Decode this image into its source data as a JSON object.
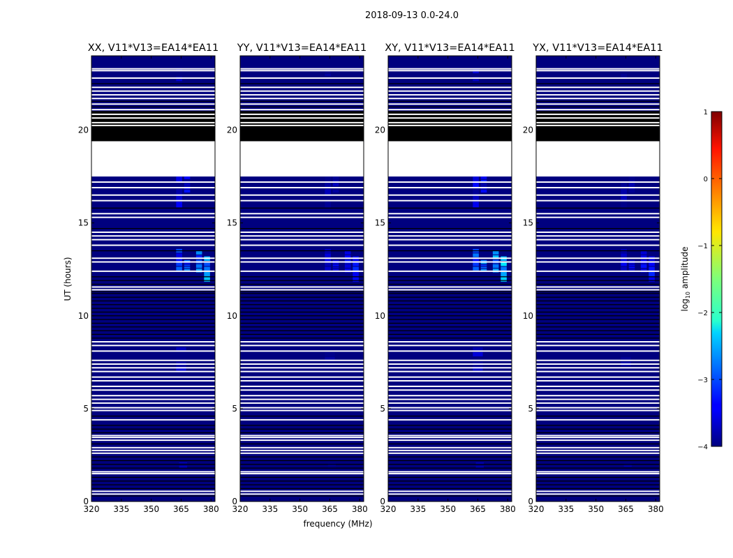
{
  "figure": {
    "suptitle": "2018-09-13 0.0-24.0",
    "xlabel": "frequency (MHz)",
    "ylabel": "UT (hours)"
  },
  "colorbar": {
    "label_prefix": "log",
    "label_sub": "10",
    "label_suffix": " amplitude",
    "range": [
      -4,
      1
    ],
    "ticks": [
      1,
      0,
      -1,
      -2,
      -3,
      -4
    ],
    "tick_labels": [
      "1",
      "0",
      "−1",
      "−2",
      "−3",
      "−4"
    ],
    "colormap": "jet"
  },
  "chart_data": {
    "type": "heatmap",
    "xlim": [
      320,
      382
    ],
    "ylim": [
      0,
      24
    ],
    "x_ticks": [
      320,
      335,
      350,
      365,
      380
    ],
    "x_tick_labels": [
      "320",
      "335",
      "350",
      "365",
      "380"
    ],
    "y_ticks": [
      0,
      5,
      10,
      15,
      20
    ],
    "y_tick_labels": [
      "0",
      "5",
      "10",
      "15",
      "20"
    ],
    "colors": {
      "background": "#00007f",
      "flagged": "#ffffff",
      "rows": "#000000"
    },
    "gap_hours": [
      17.5,
      19.4
    ],
    "black_band_hours": [
      [
        19.4,
        20.1
      ],
      [
        20.5,
        20.8
      ]
    ],
    "panels": [
      {
        "title": "XX, V11*V13=EA14*EA11",
        "strength": 1.0
      },
      {
        "title": "YY, V11*V13=EA14*EA11",
        "strength": 0.55
      },
      {
        "title": "XY, V11*V13=EA14*EA11",
        "strength": 1.1
      },
      {
        "title": "YX, V11*V13=EA14*EA11",
        "strength": 0.5
      }
    ],
    "white_lines_hours": [
      0.4,
      0.55,
      1.5,
      1.6,
      2.6,
      2.75,
      2.9,
      3.3,
      3.45,
      3.55,
      4.4,
      4.9,
      5.05,
      5.3,
      5.5,
      5.7,
      6.0,
      6.2,
      6.5,
      6.7,
      7.0,
      7.2,
      7.4,
      7.6,
      8.1,
      8.4,
      8.6,
      11.4,
      11.55,
      12.4,
      12.9,
      13.1,
      13.8,
      14.1,
      14.3,
      14.5,
      15.3,
      15.5,
      16.2,
      16.5,
      16.9,
      17.2,
      21.1,
      21.4,
      21.7,
      21.9,
      22.1,
      22.3,
      22.8,
      23.2,
      23.3
    ],
    "black_lines_hours": [
      0.3,
      0.7,
      0.9,
      1.1,
      1.3,
      1.8,
      2.0,
      2.2,
      2.4,
      3.1,
      3.7,
      3.9,
      4.1,
      4.6,
      8.8,
      9.0,
      9.2,
      9.4,
      9.6,
      9.8,
      10.0,
      10.2,
      10.4,
      10.6,
      10.8,
      11.0,
      11.2,
      11.3,
      11.7,
      11.9,
      12.1,
      13.5,
      14.7,
      15.8,
      20.9,
      21.0,
      21.25,
      21.55,
      22.5
    ],
    "blobs": [
      {
        "f": 364,
        "fw": 3,
        "t0": 12.4,
        "t1": 13.6,
        "v": -2.9
      },
      {
        "f": 368,
        "fw": 3,
        "t0": 12.4,
        "t1": 13.0,
        "v": -2.7
      },
      {
        "f": 374,
        "fw": 3,
        "t0": 12.3,
        "t1": 13.5,
        "v": -2.6
      },
      {
        "f": 378,
        "fw": 3,
        "t0": 11.8,
        "t1": 13.2,
        "v": -2.4
      },
      {
        "f": 364,
        "fw": 3,
        "t0": 15.8,
        "t1": 17.5,
        "v": -3.4
      },
      {
        "f": 368,
        "fw": 3,
        "t0": 16.6,
        "t1": 17.5,
        "v": -3.3
      },
      {
        "f": 365,
        "fw": 5,
        "t0": 7.0,
        "t1": 8.3,
        "v": -3.6
      },
      {
        "f": 366,
        "fw": 4,
        "t0": 1.8,
        "t1": 2.1,
        "v": -3.5
      },
      {
        "f": 364,
        "fw": 3,
        "t0": 22.6,
        "t1": 23.3,
        "v": -3.6
      }
    ]
  }
}
